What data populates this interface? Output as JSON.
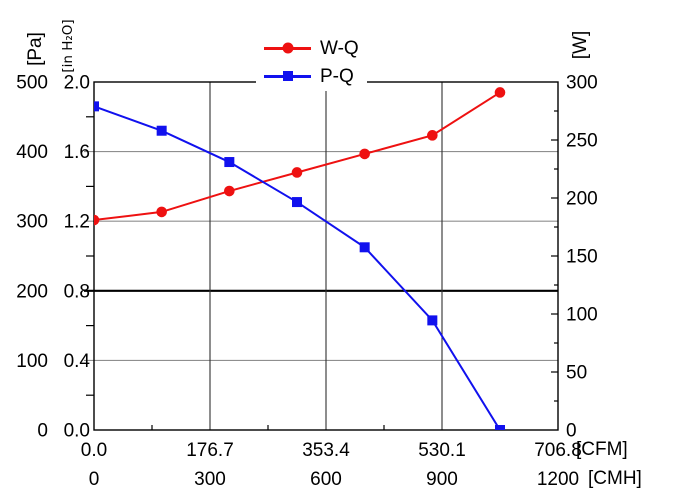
{
  "legend": {
    "items": [
      {
        "label": "W-Q",
        "color": "#ee1111",
        "marker": "circle"
      },
      {
        "label": "P-Q",
        "color": "#1111ee",
        "marker": "square"
      }
    ]
  },
  "axes": {
    "left_pa": {
      "unit": "[Pa]",
      "tick_labels": [
        "0",
        "100",
        "200",
        "300",
        "400",
        "500"
      ],
      "range": [
        0,
        500
      ]
    },
    "left_inh2o": {
      "unit": "[in H₂O]",
      "tick_labels": [
        "0.0",
        "0.4",
        "0.8",
        "1.2",
        "1.6",
        "2.0"
      ],
      "range": [
        0,
        2.0
      ]
    },
    "right_w": {
      "unit": "[W]",
      "tick_labels": [
        "0",
        "50",
        "100",
        "150",
        "200",
        "250",
        "300"
      ],
      "range": [
        0,
        300
      ]
    },
    "bottom_cfm": {
      "unit": "[CFM]",
      "tick_labels": [
        "0.0",
        "176.7",
        "353.4",
        "530.1",
        "706.8"
      ],
      "range": [
        0,
        706.8
      ]
    },
    "bottom_cmh": {
      "unit": "[CMH]",
      "tick_labels": [
        "0",
        "300",
        "600",
        "900",
        "1200"
      ],
      "range": [
        0,
        1200
      ]
    }
  },
  "colors": {
    "wq_series": "#ee1111",
    "pq_series": "#1111ee",
    "grid_horizontal": "#8f8f8f",
    "grid_vertical": "#303030",
    "emphasized_line": "#000000",
    "axis": "#000000",
    "background": "#ffffff"
  },
  "chart_data": {
    "type": "line",
    "x_cmh": [
      0,
      175,
      350,
      525,
      700,
      875,
      1050
    ],
    "series": [
      {
        "name": "W-Q",
        "y_axis": "right [W]",
        "color": "#ee1111",
        "marker": "circle",
        "values_w": [
          181,
          188,
          206,
          222,
          238,
          254,
          291
        ]
      },
      {
        "name": "P-Q",
        "y_axis": "left [in H₂O] / [Pa]",
        "color": "#1111ee",
        "marker": "square",
        "values_inh2o": [
          1.86,
          1.72,
          1.54,
          1.31,
          1.05,
          0.63,
          0.0
        ],
        "values_pa": [
          465,
          430,
          385,
          328,
          263,
          158,
          0
        ]
      }
    ],
    "xlim_cmh": [
      0,
      1200
    ],
    "xlim_cfm": [
      0,
      706.8
    ],
    "ylim_left_inh2o": [
      0,
      2.0
    ],
    "ylim_left_pa": [
      0,
      500
    ],
    "ylim_right_w": [
      0,
      300
    ],
    "x_ticks_cmh": [
      0,
      300,
      600,
      900,
      1200
    ],
    "x_ticks_cfm": [
      0,
      176.7,
      353.4,
      530.1,
      706.8
    ],
    "grid": true,
    "legend_position": "top-center",
    "emphasized_gridline_inh2o": 0.8,
    "title": "",
    "xlabel": "[CFM] / [CMH]",
    "ylabel_left": "[Pa] / [in H₂O]",
    "ylabel_right": "[W]"
  }
}
